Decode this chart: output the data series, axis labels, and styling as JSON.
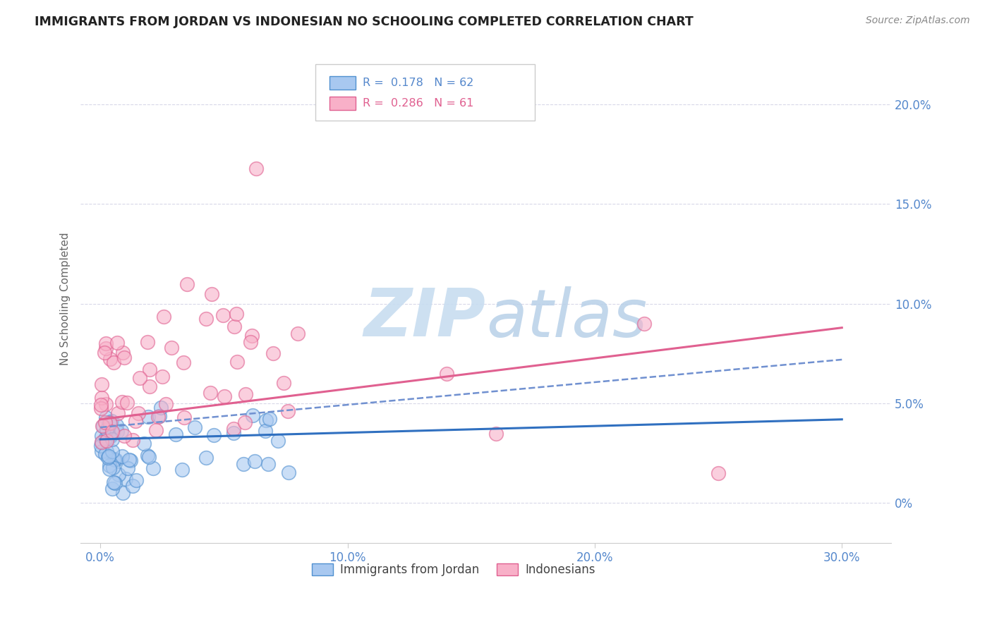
{
  "title": "IMMIGRANTS FROM JORDAN VS INDONESIAN NO SCHOOLING COMPLETED CORRELATION CHART",
  "source": "Source: ZipAtlas.com",
  "ylabel": "No Schooling Completed",
  "xaxis_ticks": [
    0.0,
    10.0,
    20.0,
    30.0
  ],
  "yaxis_right_ticks": [
    0.0,
    5.0,
    10.0,
    15.0,
    20.0
  ],
  "xlim": [
    -0.8,
    32.0
  ],
  "ylim": [
    -2.0,
    22.5
  ],
  "blue_line_x": [
    0.0,
    30.0
  ],
  "blue_line_y": [
    3.2,
    4.2
  ],
  "pink_line_x": [
    0.0,
    30.0
  ],
  "pink_line_y": [
    4.2,
    8.8
  ],
  "dash_line_x": [
    0.0,
    30.0
  ],
  "dash_line_y": [
    3.8,
    7.2
  ],
  "blue_scatter_color": "#a8c8f0",
  "blue_edge_color": "#5090d0",
  "pink_scatter_color": "#f8b0c8",
  "pink_edge_color": "#e06090",
  "blue_line_color": "#3070c0",
  "pink_line_color": "#e06090",
  "dash_line_color": "#7090d0",
  "watermark_text": "ZIPatlas",
  "watermark_color": "#ddeeff",
  "background_color": "#ffffff",
  "grid_color": "#d8d8e8",
  "title_color": "#222222",
  "source_color": "#888888",
  "axis_label_color": "#5588cc",
  "ylabel_color": "#666666"
}
